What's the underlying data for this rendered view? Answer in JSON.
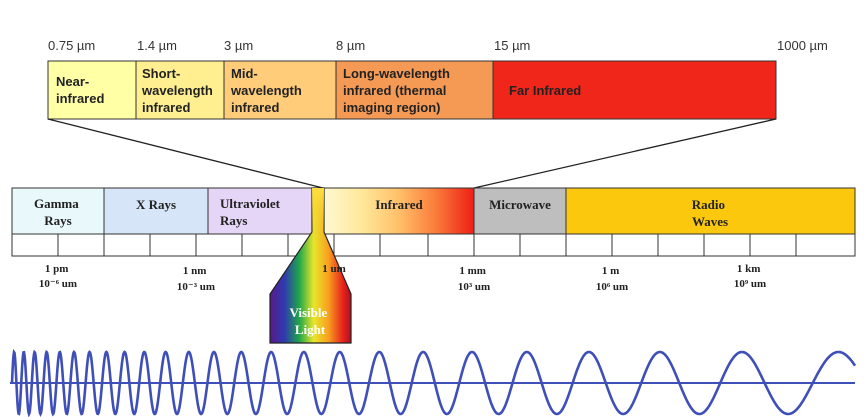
{
  "infrared_detail": {
    "wavelength_labels": [
      "0.75 µm",
      "1.4 µm",
      "3 µm",
      "8 µm",
      "15 µm",
      "1000 µm"
    ],
    "bands": [
      {
        "lines": [
          "Near-",
          "infrared"
        ],
        "color": "#FFFFA6"
      },
      {
        "lines": [
          "Short-",
          "wavelength",
          "infrared"
        ],
        "color": "#FFEF90"
      },
      {
        "lines": [
          "Mid-",
          "wavelength",
          "infrared"
        ],
        "color": "#FFCC7A"
      },
      {
        "lines": [
          "Long-wavelength",
          "infrared (thermal",
          "imaging region)"
        ],
        "color": "#F59A55"
      },
      {
        "lines": [
          "Far Infrared"
        ],
        "color": "#F0261B"
      }
    ]
  },
  "spectrum": {
    "bands": [
      {
        "lines": [
          "Gamma",
          "Rays"
        ],
        "color": "#E8F8FB"
      },
      {
        "lines": [
          "X Rays"
        ],
        "color": "#D6E6F8"
      },
      {
        "lines": [
          "Ultraviolet",
          "Rays"
        ],
        "color": "#E5D5F7"
      },
      {
        "lines": [
          "Infrared"
        ],
        "color": "#FFE9A0"
      },
      {
        "lines": [
          "Microwave"
        ],
        "color": "#BEBEBE"
      },
      {
        "lines": [
          "Radio",
          "Waves"
        ],
        "color": "#FCC80E"
      }
    ],
    "scale_labels": [
      {
        "lines": [
          "1 pm",
          "10⁻⁶ um"
        ]
      },
      {
        "lines": [
          "1 nm",
          "10⁻³ um"
        ]
      },
      {
        "lines": [
          "1 um"
        ]
      },
      {
        "lines": [
          "1 mm",
          "10³ um"
        ]
      },
      {
        "lines": [
          "1 m",
          "10⁶ um"
        ]
      },
      {
        "lines": [
          "1 km",
          "10⁹ um"
        ]
      }
    ],
    "visible_light": {
      "lines": [
        "Visible",
        "Light"
      ]
    }
  },
  "wave": {
    "color": "#3F4FB8",
    "axis_color": "#3F4FB8"
  }
}
